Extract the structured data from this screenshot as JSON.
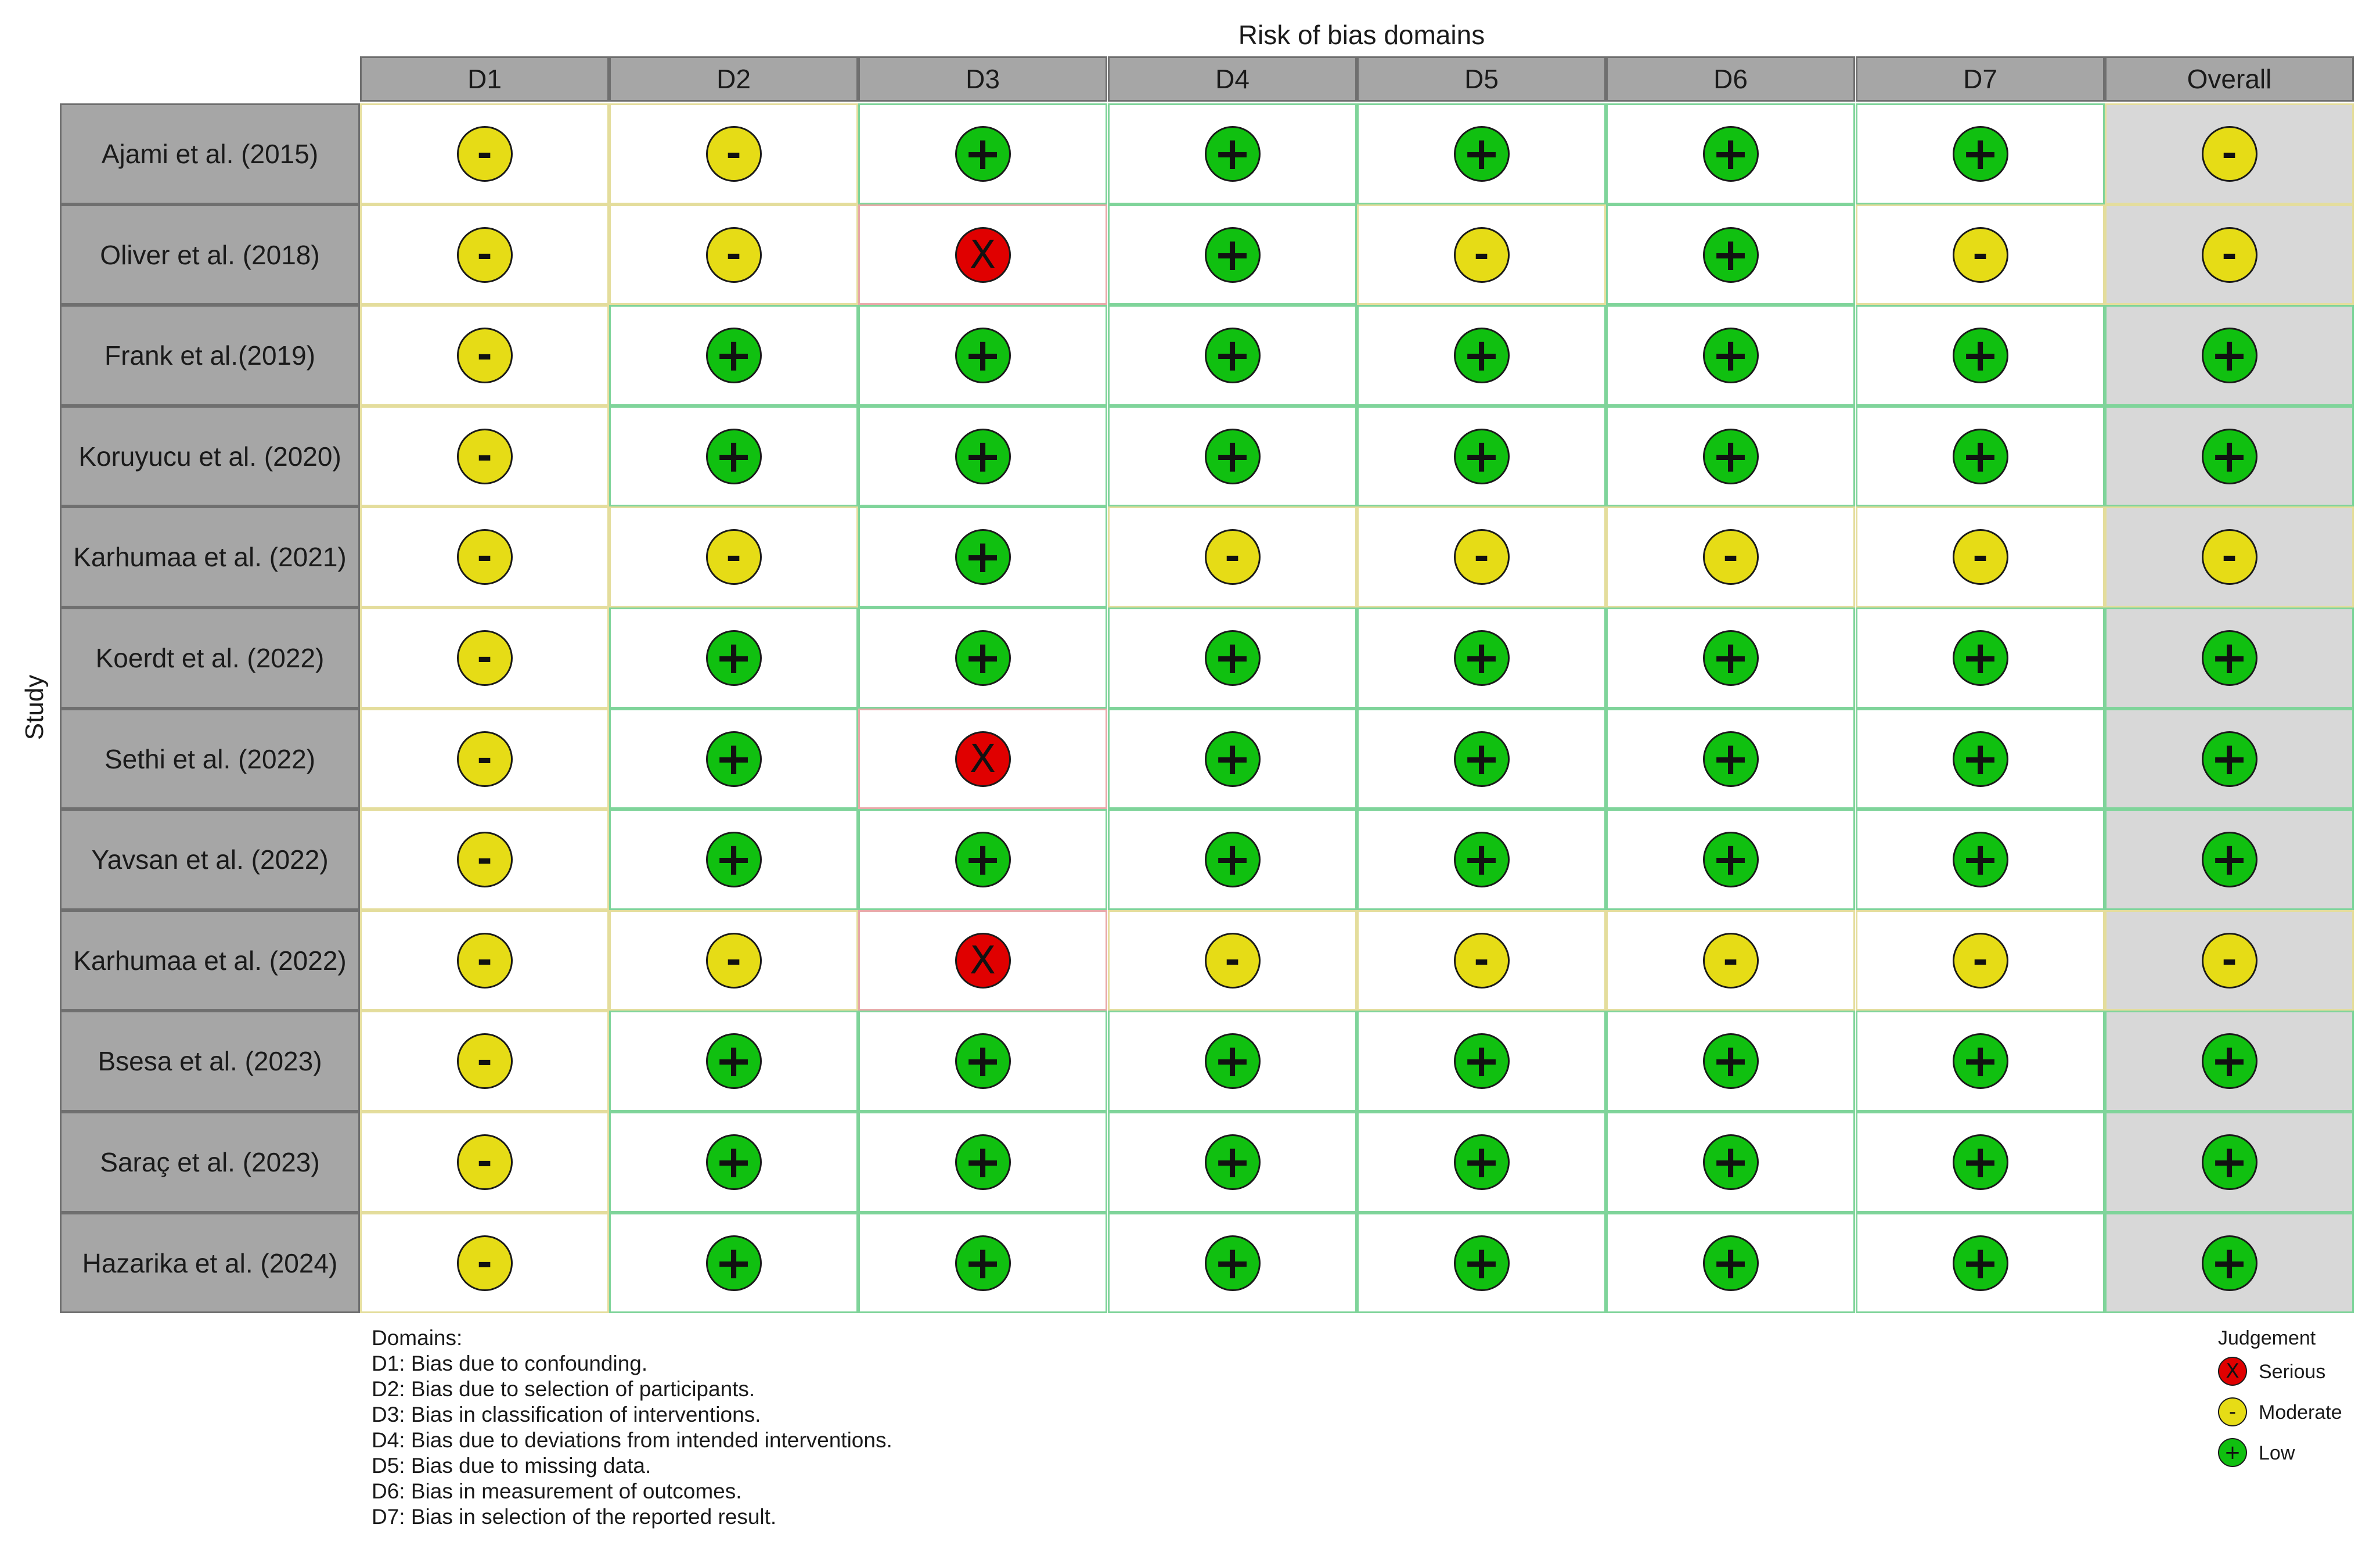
{
  "chart_data": {
    "type": "table",
    "title": "Risk of bias domains",
    "ylabel": "Study",
    "columns": [
      "D1",
      "D2",
      "D3",
      "D4",
      "D5",
      "D6",
      "D7",
      "Overall"
    ],
    "rows": [
      {
        "study": "Ajami et al. (2015)",
        "judgements": [
          "Moderate",
          "Moderate",
          "Low",
          "Low",
          "Low",
          "Low",
          "Low",
          "Moderate"
        ]
      },
      {
        "study": "Oliver et al. (2018)",
        "judgements": [
          "Moderate",
          "Moderate",
          "Serious",
          "Low",
          "Moderate",
          "Low",
          "Moderate",
          "Moderate"
        ]
      },
      {
        "study": "Frank et al.(2019)",
        "judgements": [
          "Moderate",
          "Low",
          "Low",
          "Low",
          "Low",
          "Low",
          "Low",
          "Low"
        ]
      },
      {
        "study": "Koruyucu et al. (2020)",
        "judgements": [
          "Moderate",
          "Low",
          "Low",
          "Low",
          "Low",
          "Low",
          "Low",
          "Low"
        ]
      },
      {
        "study": "Karhumaa et al. (2021)",
        "judgements": [
          "Moderate",
          "Moderate",
          "Low",
          "Moderate",
          "Moderate",
          "Moderate",
          "Moderate",
          "Moderate"
        ]
      },
      {
        "study": "Koerdt et al. (2022)",
        "judgements": [
          "Moderate",
          "Low",
          "Low",
          "Low",
          "Low",
          "Low",
          "Low",
          "Low"
        ]
      },
      {
        "study": "Sethi et al. (2022)",
        "judgements": [
          "Moderate",
          "Low",
          "Serious",
          "Low",
          "Low",
          "Low",
          "Low",
          "Low"
        ]
      },
      {
        "study": "Yavsan et al. (2022)",
        "judgements": [
          "Moderate",
          "Low",
          "Low",
          "Low",
          "Low",
          "Low",
          "Low",
          "Low"
        ]
      },
      {
        "study": "Karhumaa et al. (2022)",
        "judgements": [
          "Moderate",
          "Moderate",
          "Serious",
          "Moderate",
          "Moderate",
          "Moderate",
          "Moderate",
          "Moderate"
        ]
      },
      {
        "study": "Bsesa et al. (2023)",
        "judgements": [
          "Moderate",
          "Low",
          "Low",
          "Low",
          "Low",
          "Low",
          "Low",
          "Low"
        ]
      },
      {
        "study": "Saraç et al. (2023)",
        "judgements": [
          "Moderate",
          "Low",
          "Low",
          "Low",
          "Low",
          "Low",
          "Low",
          "Low"
        ]
      },
      {
        "study": "Hazarika et al. (2024)",
        "judgements": [
          "Moderate",
          "Low",
          "Low",
          "Low",
          "Low",
          "Low",
          "Low",
          "Low"
        ]
      }
    ],
    "domains_heading": "Domains:",
    "domains": [
      "D1: Bias due to confounding.",
      "D2: Bias due to selection of participants.",
      "D3: Bias in classification of interventions.",
      "D4: Bias due to deviations from intended interventions.",
      "D5: Bias due to missing data.",
      "D6: Bias in measurement of outcomes.",
      "D7: Bias in selection of the reported result."
    ],
    "legend": {
      "title": "Judgement",
      "placement": "bottom-right",
      "items": [
        {
          "label": "Serious",
          "symbol": "X",
          "color": "#e00000"
        },
        {
          "label": "Moderate",
          "symbol": "-",
          "color": "#e6dc16"
        },
        {
          "label": "Low",
          "symbol": "+",
          "color": "#10c010"
        }
      ]
    }
  }
}
